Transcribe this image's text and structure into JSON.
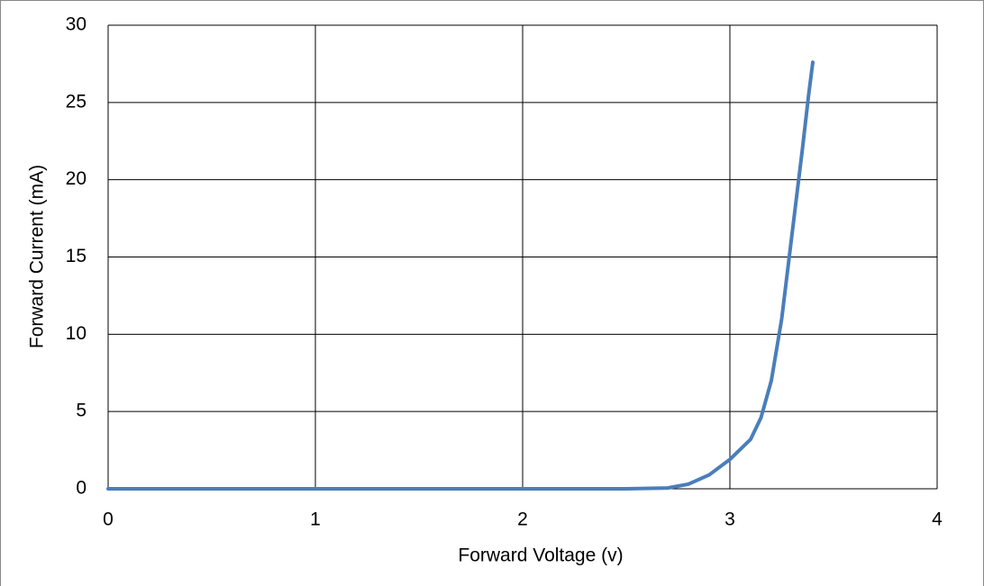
{
  "chart_data": {
    "type": "line",
    "x_label": "Forward Voltage (v)",
    "y_label": "Forward Current (mA)",
    "x": [
      0,
      1,
      2,
      2.5,
      2.7,
      2.8,
      2.9,
      3.0,
      3.1,
      3.15,
      3.2,
      3.25,
      3.3,
      3.35,
      3.38,
      3.4
    ],
    "series": [
      {
        "name": "Forward Current",
        "color": "#4a7ebb",
        "values": [
          0,
          0,
          0,
          0,
          0.05,
          0.3,
          0.9,
          1.9,
          3.2,
          4.6,
          7,
          11,
          16.5,
          22,
          25.5,
          27.6
        ]
      }
    ],
    "xlim": [
      0,
      4
    ],
    "xticks": [
      0,
      1,
      2,
      3,
      4
    ],
    "ylim": [
      0,
      30
    ],
    "yticks": [
      0,
      5,
      10,
      15,
      20,
      25,
      30
    ],
    "grid": true
  }
}
